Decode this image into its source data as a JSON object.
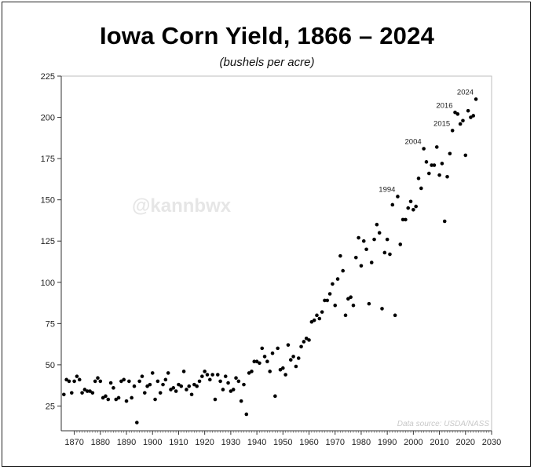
{
  "chart_data": {
    "type": "scatter",
    "title": "Iowa Corn Yield, 1866 – 2024",
    "subtitle": "(bushels per acre)",
    "xlim": [
      1865,
      2030
    ],
    "ylim": [
      10,
      225
    ],
    "x_ticks": [
      1870,
      1880,
      1890,
      1900,
      1910,
      1920,
      1930,
      1940,
      1950,
      1960,
      1970,
      1980,
      1990,
      2000,
      2010,
      2020,
      2030
    ],
    "y_ticks": [
      25,
      50,
      75,
      100,
      125,
      150,
      175,
      200,
      225
    ],
    "grid": false,
    "legend": "none",
    "watermark": "@kannbwx",
    "source_note": "Data source: USDA/NASS",
    "marker_color": "#000000",
    "annotations": [
      {
        "year": 1994,
        "value": 152,
        "label": "1994"
      },
      {
        "year": 2004,
        "value": 181,
        "label": "2004"
      },
      {
        "year": 2015,
        "value": 192,
        "label": "2015"
      },
      {
        "year": 2016,
        "value": 203,
        "label": "2016"
      },
      {
        "year": 2024,
        "value": 211,
        "label": "2024"
      }
    ],
    "points": [
      [
        1866,
        32
      ],
      [
        1867,
        41
      ],
      [
        1868,
        40
      ],
      [
        1869,
        33
      ],
      [
        1870,
        40
      ],
      [
        1871,
        43
      ],
      [
        1872,
        41
      ],
      [
        1873,
        33
      ],
      [
        1874,
        35
      ],
      [
        1875,
        34
      ],
      [
        1876,
        34
      ],
      [
        1877,
        33
      ],
      [
        1878,
        40
      ],
      [
        1879,
        42
      ],
      [
        1880,
        40
      ],
      [
        1881,
        30
      ],
      [
        1882,
        31
      ],
      [
        1883,
        29
      ],
      [
        1884,
        39
      ],
      [
        1885,
        36
      ],
      [
        1886,
        29
      ],
      [
        1887,
        30
      ],
      [
        1888,
        40
      ],
      [
        1889,
        41
      ],
      [
        1890,
        28
      ],
      [
        1891,
        40
      ],
      [
        1892,
        30
      ],
      [
        1893,
        37
      ],
      [
        1894,
        15
      ],
      [
        1895,
        40
      ],
      [
        1896,
        43
      ],
      [
        1897,
        33
      ],
      [
        1898,
        37
      ],
      [
        1899,
        38
      ],
      [
        1900,
        45
      ],
      [
        1901,
        29
      ],
      [
        1902,
        40
      ],
      [
        1903,
        33
      ],
      [
        1904,
        38
      ],
      [
        1905,
        41
      ],
      [
        1906,
        45
      ],
      [
        1907,
        35
      ],
      [
        1908,
        36
      ],
      [
        1909,
        34
      ],
      [
        1910,
        38
      ],
      [
        1911,
        37
      ],
      [
        1912,
        46
      ],
      [
        1913,
        35
      ],
      [
        1914,
        37
      ],
      [
        1915,
        32
      ],
      [
        1916,
        38
      ],
      [
        1917,
        37
      ],
      [
        1918,
        40
      ],
      [
        1919,
        43
      ],
      [
        1920,
        46
      ],
      [
        1921,
        44
      ],
      [
        1922,
        41
      ],
      [
        1923,
        44
      ],
      [
        1924,
        29
      ],
      [
        1925,
        44
      ],
      [
        1926,
        40
      ],
      [
        1927,
        35
      ],
      [
        1928,
        43
      ],
      [
        1929,
        39
      ],
      [
        1930,
        34
      ],
      [
        1931,
        35
      ],
      [
        1932,
        42
      ],
      [
        1933,
        40
      ],
      [
        1934,
        28
      ],
      [
        1935,
        38
      ],
      [
        1936,
        20
      ],
      [
        1937,
        45
      ],
      [
        1938,
        46
      ],
      [
        1939,
        52
      ],
      [
        1940,
        52
      ],
      [
        1941,
        51
      ],
      [
        1942,
        60
      ],
      [
        1943,
        55
      ],
      [
        1944,
        52
      ],
      [
        1945,
        46
      ],
      [
        1946,
        57
      ],
      [
        1947,
        31
      ],
      [
        1948,
        60
      ],
      [
        1949,
        47
      ],
      [
        1950,
        48
      ],
      [
        1951,
        44
      ],
      [
        1952,
        62
      ],
      [
        1953,
        53
      ],
      [
        1954,
        55
      ],
      [
        1955,
        49
      ],
      [
        1956,
        54
      ],
      [
        1957,
        61
      ],
      [
        1958,
        64
      ],
      [
        1959,
        66
      ],
      [
        1960,
        65
      ],
      [
        1961,
        76
      ],
      [
        1962,
        77
      ],
      [
        1963,
        80
      ],
      [
        1964,
        78
      ],
      [
        1965,
        82
      ],
      [
        1966,
        89
      ],
      [
        1967,
        89
      ],
      [
        1968,
        93
      ],
      [
        1969,
        99
      ],
      [
        1970,
        86
      ],
      [
        1971,
        102
      ],
      [
        1972,
        116
      ],
      [
        1973,
        107
      ],
      [
        1974,
        80
      ],
      [
        1975,
        90
      ],
      [
        1976,
        91
      ],
      [
        1977,
        86
      ],
      [
        1978,
        115
      ],
      [
        1979,
        127
      ],
      [
        1980,
        110
      ],
      [
        1981,
        125
      ],
      [
        1982,
        120
      ],
      [
        1983,
        87
      ],
      [
        1984,
        112
      ],
      [
        1985,
        126
      ],
      [
        1986,
        135
      ],
      [
        1987,
        130
      ],
      [
        1988,
        84
      ],
      [
        1989,
        118
      ],
      [
        1990,
        126
      ],
      [
        1991,
        117
      ],
      [
        1992,
        147
      ],
      [
        1993,
        80
      ],
      [
        1994,
        152
      ],
      [
        1995,
        123
      ],
      [
        1996,
        138
      ],
      [
        1997,
        138
      ],
      [
        1998,
        145
      ],
      [
        1999,
        149
      ],
      [
        2000,
        144
      ],
      [
        2001,
        146
      ],
      [
        2002,
        163
      ],
      [
        2003,
        157
      ],
      [
        2004,
        181
      ],
      [
        2005,
        173
      ],
      [
        2006,
        166
      ],
      [
        2007,
        171
      ],
      [
        2008,
        171
      ],
      [
        2009,
        182
      ],
      [
        2010,
        165
      ],
      [
        2011,
        172
      ],
      [
        2012,
        137
      ],
      [
        2013,
        164
      ],
      [
        2014,
        178
      ],
      [
        2015,
        192
      ],
      [
        2016,
        203
      ],
      [
        2017,
        202
      ],
      [
        2018,
        196
      ],
      [
        2019,
        198
      ],
      [
        2020,
        177
      ],
      [
        2021,
        204
      ],
      [
        2022,
        200
      ],
      [
        2023,
        201
      ],
      [
        2024,
        211
      ]
    ]
  }
}
